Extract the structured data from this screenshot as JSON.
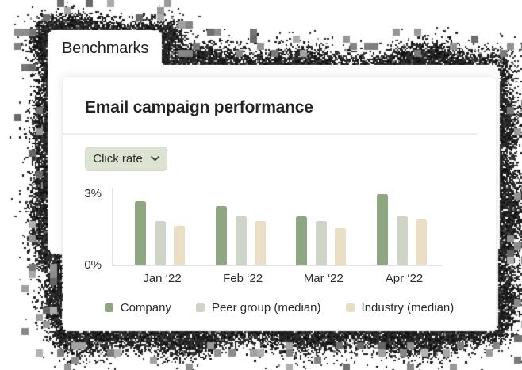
{
  "tab": {
    "label": "Benchmarks"
  },
  "panel": {
    "title": "Email campaign performance"
  },
  "filter": {
    "selected": "Click rate",
    "bg_color": "#dde3d2",
    "icon": "chevron-down"
  },
  "chart_data": {
    "type": "bar",
    "title": "Email campaign performance",
    "metric": "Click rate",
    "categories": [
      "Jan ‘22",
      "Feb ‘22",
      "Mar ‘22",
      "Apr ‘22"
    ],
    "series": [
      {
        "name": "Company",
        "color": "#8fa683",
        "values": [
          2.6,
          2.4,
          2.0,
          2.9
        ]
      },
      {
        "name": "Peer group (median)",
        "color": "#cfd5c6",
        "values": [
          1.8,
          2.0,
          1.8,
          2.0
        ]
      },
      {
        "name": "Industry (median)",
        "color": "#eadfc4",
        "values": [
          1.6,
          1.8,
          1.5,
          1.85
        ]
      }
    ],
    "unit": "%",
    "ylim": [
      0,
      3
    ],
    "yticks": {
      "top": "3%",
      "bottom": "0%"
    },
    "grid": false,
    "legend_position": "bottom"
  }
}
